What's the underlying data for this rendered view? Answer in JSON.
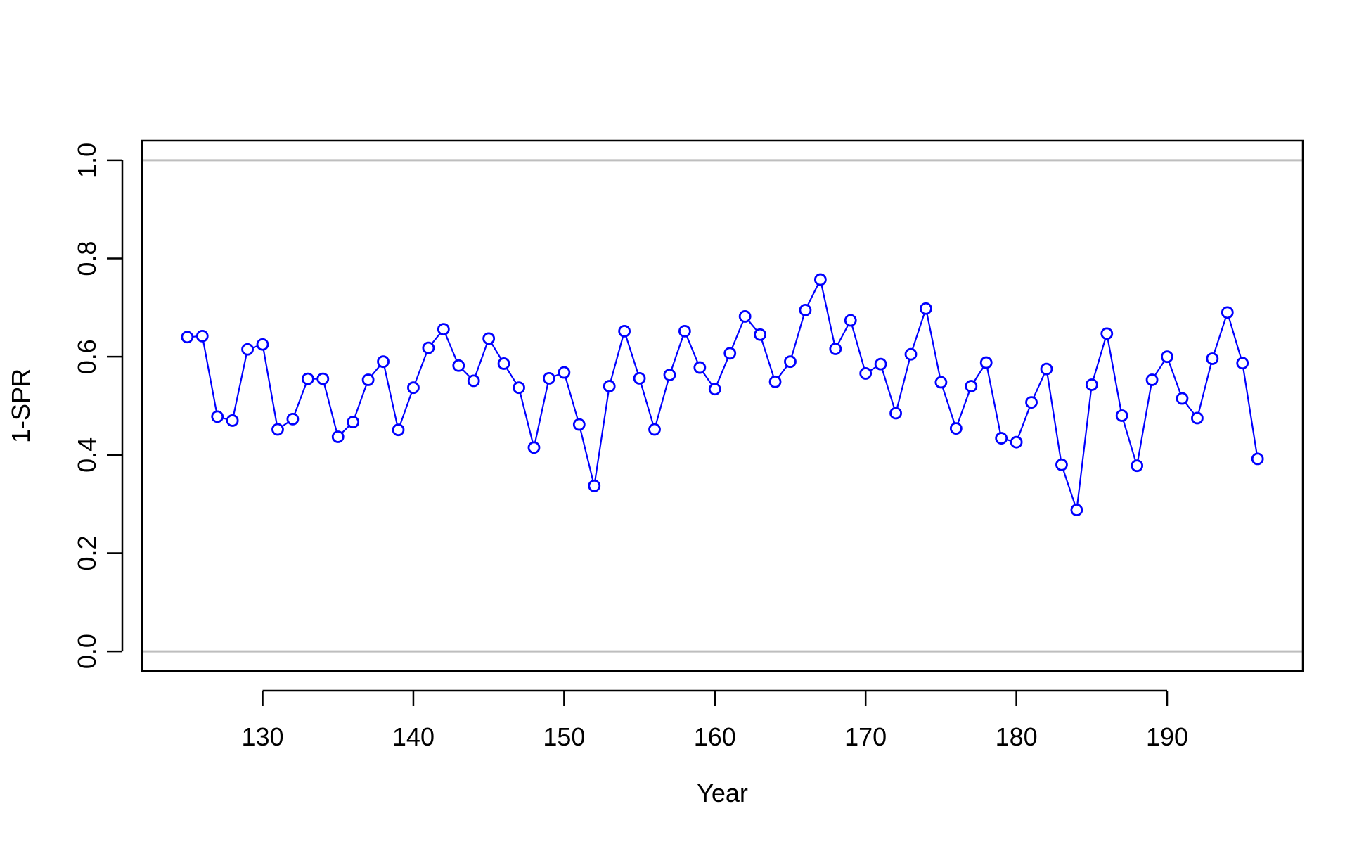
{
  "chart_data": {
    "type": "line",
    "title": "",
    "xlabel": "Year",
    "ylabel": "1-SPR",
    "xlim": [
      122,
      199
    ],
    "ylim": [
      -0.04,
      1.04
    ],
    "xticks": [
      130,
      140,
      150,
      160,
      170,
      180,
      190
    ],
    "yticks": [
      0.0,
      0.2,
      0.4,
      0.6,
      0.8,
      1.0
    ],
    "ytick_labels": [
      "0.0",
      "0.2",
      "0.4",
      "0.6",
      "0.8",
      "1.0"
    ],
    "reference_lines": [
      0.0,
      1.0
    ],
    "series": [
      {
        "color": "#0000ff",
        "marker": "open-circle",
        "x": [
          125,
          126,
          127,
          128,
          129,
          130,
          131,
          132,
          133,
          134,
          135,
          136,
          137,
          138,
          139,
          140,
          141,
          142,
          143,
          144,
          145,
          146,
          147,
          148,
          149,
          150,
          151,
          152,
          153,
          154,
          155,
          156,
          157,
          158,
          159,
          160,
          161,
          162,
          163,
          164,
          165,
          166,
          167,
          168,
          169,
          170,
          171,
          172,
          173,
          174,
          175,
          176,
          177,
          178,
          179,
          180,
          181,
          182,
          183,
          184,
          185,
          186,
          187,
          188,
          189,
          190,
          191,
          192,
          193,
          194,
          195,
          196
        ],
        "y": [
          0.64,
          0.642,
          0.478,
          0.47,
          0.615,
          0.625,
          0.452,
          0.473,
          0.555,
          0.555,
          0.437,
          0.467,
          0.553,
          0.59,
          0.451,
          0.537,
          0.618,
          0.656,
          0.582,
          0.551,
          0.637,
          0.586,
          0.537,
          0.415,
          0.556,
          0.568,
          0.462,
          0.337,
          0.54,
          0.652,
          0.556,
          0.452,
          0.563,
          0.652,
          0.578,
          0.534,
          0.607,
          0.682,
          0.645,
          0.549,
          0.59,
          0.695,
          0.757,
          0.616,
          0.674,
          0.566,
          0.585,
          0.485,
          0.605,
          0.698,
          0.548,
          0.454,
          0.54,
          0.588,
          0.434,
          0.426,
          0.507,
          0.575,
          0.38,
          0.288,
          0.543,
          0.647,
          0.48,
          0.378,
          0.553,
          0.6,
          0.515,
          0.475,
          0.596,
          0.69,
          0.587,
          0.392
        ]
      }
    ],
    "colors": {
      "series": "#0000ff",
      "reference_line": "#bebebe",
      "axes": "#000000"
    }
  }
}
